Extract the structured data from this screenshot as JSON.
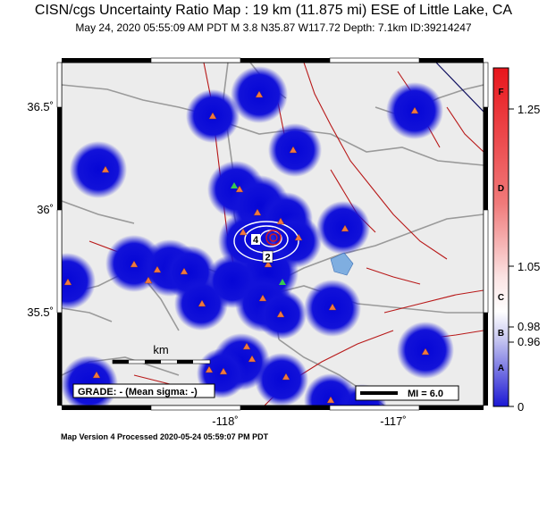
{
  "header": {
    "title": "CISN/cgs Uncertainty Ratio Map : 19 km (11.875 mi) ESE of Little Lake, CA",
    "subtitle": "May 24, 2020 05:55:09 AM PDT   M 3.8   N35.87 W117.72   Depth: 7.1km   ID:39214247"
  },
  "map": {
    "x_ticks": [
      "-118˚",
      "-117˚"
    ],
    "y_ticks": [
      "36.5˚",
      "36˚",
      "35.5˚"
    ],
    "scale_label": "km",
    "grade_label": "GRADE: - (Mean sigma: -)",
    "mi_label": "MI = 6.0",
    "contour_labels": [
      "4",
      "2"
    ]
  },
  "colorbar": {
    "letters": [
      "F",
      "D",
      "C",
      "B",
      "A"
    ],
    "values": [
      "1.25",
      "1.05",
      "0.98",
      "0.96",
      "0"
    ],
    "colors": {
      "top": "#e8161c",
      "middle": "#ffffff",
      "bottom": "#1b17d4"
    }
  },
  "footer": {
    "text": "Map Version 4 Processed 2020-05-24 05:59:07 PM PDT"
  },
  "colors": {
    "map_background": "#ececec",
    "blue_patch": "#1010d8",
    "station": "#f07840",
    "fault": "#b81818",
    "road": "#9a9a9a"
  }
}
